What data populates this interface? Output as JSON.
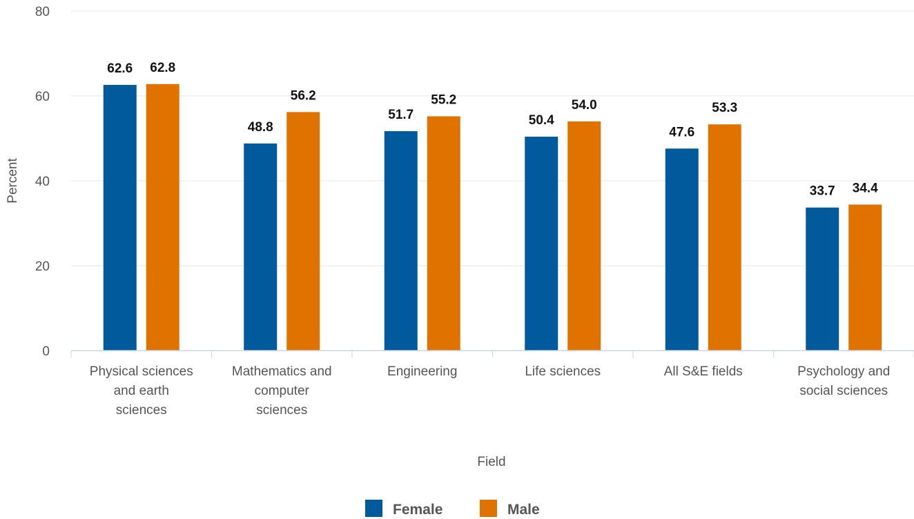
{
  "chart_data": {
    "type": "bar",
    "categories": [
      [
        "Physical sciences",
        "and earth",
        "sciences"
      ],
      [
        "Mathematics and",
        "computer",
        "sciences"
      ],
      [
        "Engineering"
      ],
      [
        "Life sciences"
      ],
      [
        "All S&E fields"
      ],
      [
        "Psychology and",
        "social sciences"
      ]
    ],
    "series": [
      {
        "name": "Female",
        "color": "#005a9c",
        "values": [
          62.6,
          48.8,
          51.7,
          50.4,
          47.6,
          33.7
        ],
        "labels": [
          "62.6",
          "48.8",
          "51.7",
          "50.4",
          "47.6",
          "33.7"
        ]
      },
      {
        "name": "Male",
        "color": "#e07300",
        "values": [
          62.8,
          56.2,
          55.2,
          54.0,
          53.3,
          34.4
        ],
        "labels": [
          "62.8",
          "56.2",
          "55.2",
          "54.0",
          "53.3",
          "34.4"
        ]
      }
    ],
    "xlabel": "Field",
    "ylabel": "Percent",
    "ylim": [
      0,
      80
    ],
    "yticks": [
      "0",
      "20",
      "40",
      "60",
      "80"
    ],
    "grid": true,
    "legend_position": "bottom-center",
    "gridline_color": "#e6e6e6",
    "axis_color": "#ccd6eb"
  }
}
